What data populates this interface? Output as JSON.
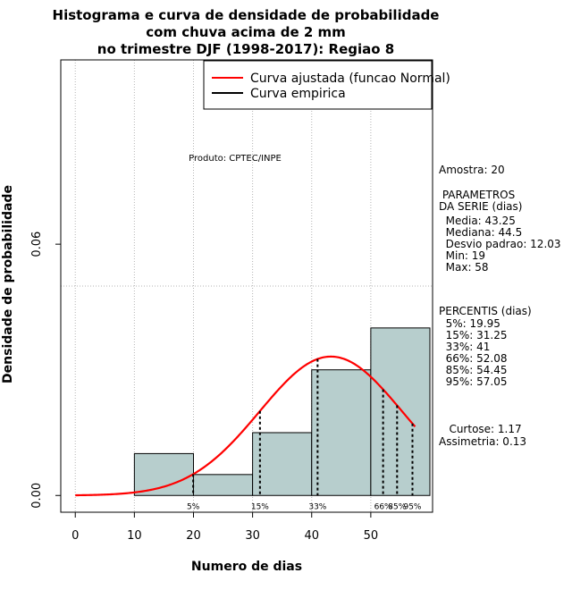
{
  "chart_data": {
    "type": "histogram",
    "title": [
      "Histograma e curva de densidade de probabilidade",
      "com chuva acima de 2 mm",
      "no trimestre DJF (1998-2017): Regiao 8"
    ],
    "xlabel": "Numero de dias",
    "ylabel": "Densidade de probabilidade",
    "xlim": [
      -2,
      60
    ],
    "ylim": [
      -0.004,
      0.104
    ],
    "x_ticks": [
      0,
      10,
      20,
      30,
      40,
      50
    ],
    "y_ticks": [
      0.0,
      0.06
    ],
    "y_tick_labels": [
      "0.00",
      "0.06"
    ],
    "grid": true,
    "legend_position": "top-right",
    "legend": [
      {
        "label": "Curva ajustada (funcao Normal)",
        "color": "#ff0000"
      },
      {
        "label": "Curva empirica",
        "color": "#000000"
      }
    ],
    "colors": {
      "bars": "#b7cecd",
      "fit": "#ff0000",
      "percentile": "#000000"
    },
    "bins": [
      {
        "start": 10,
        "end": 20,
        "density": 0.01
      },
      {
        "start": 20,
        "end": 30,
        "density": 0.005
      },
      {
        "start": 30,
        "end": 40,
        "density": 0.015
      },
      {
        "start": 40,
        "end": 50,
        "density": 0.03
      },
      {
        "start": 50,
        "end": 60,
        "density": 0.04
      }
    ],
    "fit": {
      "mean": 43.25,
      "sd": 12.03,
      "x_range": [
        0,
        57.5
      ]
    },
    "percentiles": [
      {
        "label": "5%",
        "x": 19.95
      },
      {
        "label": "15%",
        "x": 31.25
      },
      {
        "label": "33%",
        "x": 41
      },
      {
        "label": "66%",
        "x": 52.08
      },
      {
        "label": "85%",
        "x": 54.45
      },
      {
        "label": "95%",
        "x": 57.05
      }
    ],
    "annotation": "Produto: CPTEC/INPE"
  },
  "stats": {
    "amostra": "Amostra: 20",
    "parametros_title": " PARAMETROS\nDA SERIE (dias)",
    "parametros": "  Media: 43.25\n  Mediana: 44.5\n  Desvio padrao: 12.03\n  Min: 19\n  Max: 58",
    "percentis_title": "PERCENTIS (dias)",
    "percentis": "  5%: 19.95\n  15%: 31.25\n  33%: 41\n  66%: 52.08\n  85%: 54.45\n  95%: 57.05",
    "curtose": "   Curtose: 1.17",
    "assimetria": "Assimetria: 0.13"
  }
}
